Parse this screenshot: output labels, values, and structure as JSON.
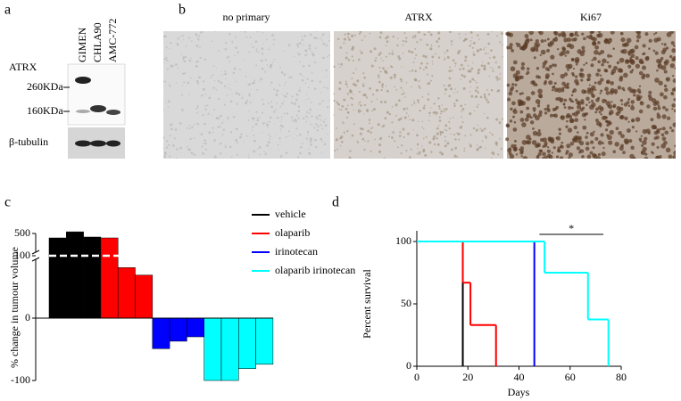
{
  "panel_a": {
    "label": "a",
    "lanes": [
      "GIMEN",
      "CHLA90",
      "AMC-772"
    ],
    "protein": "ATRX",
    "size_markers": [
      "260KDa",
      "160KDa"
    ],
    "loading_control": "β-tubulin"
  },
  "panel_b": {
    "label": "b",
    "stains": [
      "no primary",
      "ATRX",
      "Ki67"
    ]
  },
  "chart_data": [
    {
      "type": "bar",
      "panel_label": "c",
      "ylabel": "% change in tumour volume",
      "ylim": [
        -100,
        500
      ],
      "yticks": [
        -100,
        0,
        100,
        500
      ],
      "y_break": 100,
      "legend": "right",
      "series": [
        {
          "name": "vehicle",
          "color": "#000000",
          "values": [
            420,
            530,
            436
          ]
        },
        {
          "name": "olaparib",
          "color": "#ff0000",
          "values": [
            420,
            81,
            69
          ]
        },
        {
          "name": "irinotecan",
          "color": "#0000ff",
          "values": [
            -49,
            -37,
            -30
          ]
        },
        {
          "name": "olaparib irinotecan",
          "color": "#00ffff",
          "values": [
            -100,
            -100,
            -81,
            -74
          ]
        }
      ]
    },
    {
      "type": "step",
      "panel_label": "d",
      "xlabel": "Days",
      "ylabel": "Percent survival",
      "xlim": [
        0,
        80
      ],
      "xticks": [
        0,
        20,
        40,
        60,
        80
      ],
      "ylim": [
        0,
        100
      ],
      "yticks": [
        0,
        50,
        100
      ],
      "series": [
        {
          "color": "#000000",
          "x": [
            0,
            18
          ],
          "values": [
            100,
            0
          ]
        },
        {
          "color": "#ff0000",
          "x": [
            0,
            18,
            21,
            31
          ],
          "values": [
            100,
            67,
            33,
            0
          ]
        },
        {
          "color": "#0000ff",
          "x": [
            0,
            46
          ],
          "values": [
            100,
            0
          ]
        },
        {
          "color": "#00ffff",
          "x": [
            0,
            50,
            67,
            75
          ],
          "values": [
            100,
            75,
            37.5,
            0
          ]
        }
      ],
      "annotation": {
        "text": "*",
        "x": [
          48,
          73
        ]
      }
    }
  ]
}
